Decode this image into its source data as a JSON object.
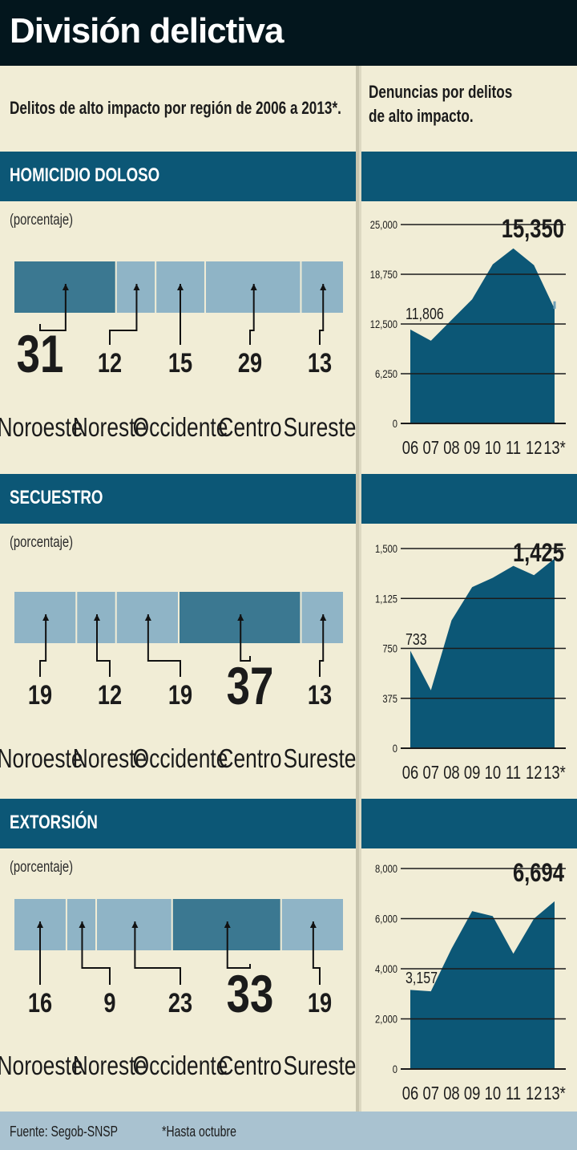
{
  "title": "División delictiva",
  "subtitle": "Delitos de alto impacto por región de 2006 a 2013*.",
  "right_heading": {
    "line1": "Denuncias por delitos",
    "line2": "de alto impacto."
  },
  "unit_label": "(porcentaje)",
  "footer": {
    "source": "Fuente: Segob-SNSP",
    "note": "*Hasta octubre"
  },
  "colors": {
    "light_bar": "#8fb4c6",
    "dark_bar": "#3b7891",
    "area": "#0c5776",
    "band": "#0c5776",
    "background": "#f1edd6",
    "title_bg": "#03161d"
  },
  "chart_data": [
    {
      "type": "bar",
      "title": "HOMICIDIO DOLOSO",
      "ylabel": "(porcentaje)",
      "categories": [
        "Noroeste",
        "Noreste",
        "Occidente",
        "Centro",
        "Sureste"
      ],
      "values": [
        31,
        12,
        15,
        29,
        13
      ],
      "value_labels": [
        "31",
        "12",
        "15",
        "29",
        "13"
      ],
      "highlight": "max"
    },
    {
      "type": "area",
      "x": [
        "06",
        "07",
        "08",
        "09",
        "10",
        "11",
        "12",
        "13*"
      ],
      "values": [
        11806,
        10400,
        13000,
        15600,
        20000,
        22000,
        19900,
        14400
      ],
      "projected_end": 15350,
      "yticks": [
        "0",
        "6,250",
        "12,500",
        "18,750",
        "25,000"
      ],
      "ylim": [
        0,
        25000
      ],
      "annotations": {
        "start": "11,806",
        "end": "15,350"
      }
    },
    {
      "type": "bar",
      "title": "SECUESTRO",
      "ylabel": "(porcentaje)",
      "categories": [
        "Noroeste",
        "Noreste",
        "Occidente",
        "Centro",
        "Sureste"
      ],
      "values": [
        19,
        12,
        19,
        37,
        13
      ],
      "value_labels": [
        "19",
        "12",
        "19",
        "37",
        "13"
      ],
      "highlight": "max"
    },
    {
      "type": "area",
      "x": [
        "06",
        "07",
        "08",
        "09",
        "10",
        "11",
        "12",
        "13*"
      ],
      "values": [
        733,
        435,
        960,
        1210,
        1280,
        1370,
        1300,
        1425
      ],
      "yticks": [
        "0",
        "375",
        "750",
        "1,125",
        "1,500"
      ],
      "ylim": [
        0,
        1500
      ],
      "annotations": {
        "start": "733",
        "end": "1,425"
      }
    },
    {
      "type": "bar",
      "title": "EXTORSIÓN",
      "ylabel": "(porcentaje)",
      "categories": [
        "Noroeste",
        "Noreste",
        "Occidente",
        "Centro",
        "Sureste"
      ],
      "values": [
        16,
        9,
        23,
        33,
        19
      ],
      "value_labels": [
        "16",
        "9",
        "23",
        "33",
        "19"
      ],
      "highlight": "max"
    },
    {
      "type": "area",
      "x": [
        "06",
        "07",
        "08",
        "09",
        "10",
        "11",
        "12",
        "13*"
      ],
      "values": [
        3157,
        3100,
        4800,
        6300,
        6100,
        4600,
        6000,
        6694
      ],
      "yticks": [
        "0",
        "2,000",
        "4,000",
        "6,000",
        "8,000"
      ],
      "ylim": [
        0,
        8000
      ],
      "annotations": {
        "start": "3,157",
        "end": "6,694"
      }
    }
  ]
}
